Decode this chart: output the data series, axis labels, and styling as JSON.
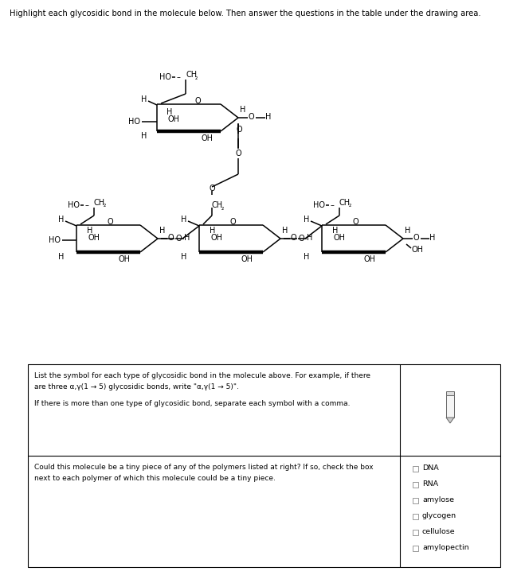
{
  "title_text": "Highlight each glycosidic bond in the molecule below. Then answer the questions in the table under the drawing area.",
  "title_fontsize": 7.2,
  "bg_color": "#ffffff",
  "fig_width": 6.59,
  "fig_height": 7.28,
  "polymer_list": [
    "DNA",
    "RNA",
    "amylose",
    "glycogen",
    "cellulose",
    "amylopectin"
  ],
  "q1_line1": "List the symbol for each type of glycosidic bond in the molecule above. For example, if there",
  "q1_line2": "are three α,γ(1 → 5) glycosidic bonds, write \"α,γ(1 → 5)\".",
  "q1_line3": "If there is more than one type of glycosidic bond, separate each symbol with a comma.",
  "q2_line1": "Could this molecule be a tiny piece of any of the polymers listed at right? If so, check the box",
  "q2_line2": "next to each polymer of which this molecule could be a tiny piece."
}
